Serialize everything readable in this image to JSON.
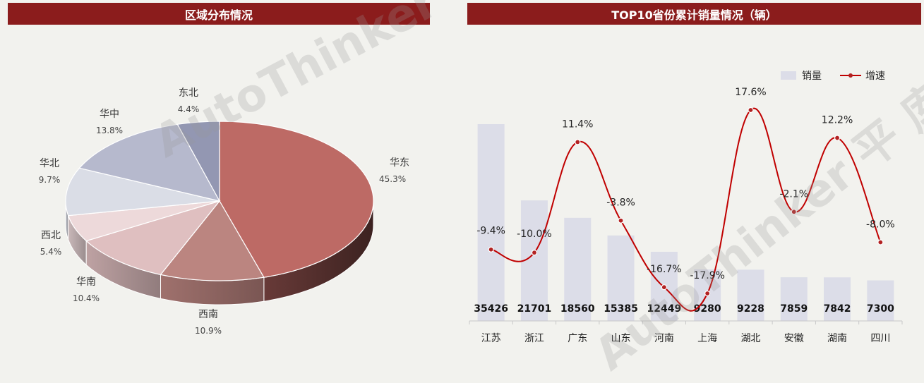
{
  "left_panel": {
    "title": "区域分布情况"
  },
  "right_panel": {
    "title": "TOP10省份累计销量情况（辆）"
  },
  "watermark": {
    "text": "AutoThinker 平 库 台"
  },
  "chart_data": [
    {
      "type": "pie",
      "title": "区域分布情况",
      "labels": [
        "华东",
        "西南",
        "华南",
        "西北",
        "华北",
        "华中",
        "东北"
      ],
      "values": [
        45.3,
        10.9,
        10.4,
        5.4,
        9.7,
        13.8,
        4.4
      ],
      "value_labels": [
        "45.3%",
        "10.9%",
        "10.4%",
        "5.4%",
        "9.7%",
        "13.8%",
        "4.4%"
      ],
      "colors": [
        "#bd6a65",
        "#bb8580",
        "#dfbfc0",
        "#edd9da",
        "#dadde6",
        "#b6b9cd",
        "#9397b2"
      ],
      "legend": "none"
    },
    {
      "type": "bar",
      "title": "TOP10省份累计销量情况（辆）",
      "categories": [
        "江苏",
        "浙江",
        "广东",
        "山东",
        "河南",
        "上海",
        "湖北",
        "安徽",
        "湖南",
        "四川"
      ],
      "series": [
        {
          "name": "销量",
          "type": "bar",
          "values": [
            35426,
            21701,
            18560,
            15385,
            12449,
            9280,
            9228,
            7859,
            7842,
            7300
          ],
          "color": "#dcdde8"
        },
        {
          "name": "增速",
          "type": "line",
          "values": [
            -9.4,
            -10.0,
            11.4,
            -3.8,
            -16.7,
            -17.9,
            17.6,
            -2.1,
            12.2,
            -8.0
          ],
          "value_labels": [
            "-9.4%",
            "-10.0%",
            "11.4%",
            "-3.8%",
            "-16.7%",
            "-17.9%",
            "17.6%",
            "-2.1%",
            "12.2%",
            "-8.0%"
          ],
          "color": "#c00000"
        }
      ],
      "legend": "top-right",
      "grid": false
    }
  ]
}
